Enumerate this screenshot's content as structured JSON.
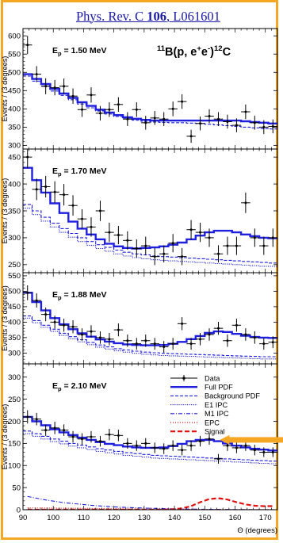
{
  "reference": {
    "journal": "Phys. Rev. C ",
    "volume": "106",
    "sep": ", ",
    "article": "L061601"
  },
  "reaction": {
    "pre": "11",
    "a": "B(p, e",
    "sup_plus": "+",
    "b": "e",
    "sup_minus": "-",
    "c": ")",
    "post": "12",
    "d": "C"
  },
  "colors": {
    "frame": "#f5a623",
    "pdf": "#1f1fe0",
    "signal": "#e01010",
    "data": "#000000",
    "link": "#1a1aa6"
  },
  "chart_data": [
    {
      "type": "line",
      "energy_label": {
        "pre": "E",
        "sub": "p",
        "post": " = 1.50 MeV"
      },
      "ylabel": "Events / (3 degrees)",
      "ylim": [
        290,
        620
      ],
      "yticks": [
        300,
        350,
        400,
        450,
        500,
        550,
        600
      ],
      "x": [
        91.5,
        94.5,
        97.5,
        100.5,
        103.5,
        106.5,
        109.5,
        112.5,
        115.5,
        118.5,
        121.5,
        124.5,
        127.5,
        130.5,
        133.5,
        136.5,
        139.5,
        142.5,
        145.5,
        148.5,
        151.5,
        154.5,
        157.5,
        160.5,
        163.5,
        166.5,
        169.5,
        172.5
      ],
      "data": [
        575,
        495,
        462,
        458,
        462,
        435,
        398,
        438,
        388,
        398,
        412,
        372,
        398,
        362,
        375,
        372,
        400,
        420,
        325,
        360,
        380,
        372,
        365,
        355,
        392,
        362,
        350,
        352
      ],
      "errors": [
        25,
        22,
        22,
        21,
        21,
        21,
        20,
        21,
        20,
        20,
        20,
        19,
        20,
        19,
        19,
        19,
        20,
        20,
        18,
        19,
        19,
        19,
        19,
        19,
        20,
        19,
        19,
        19
      ],
      "full_pdf": [
        495,
        482,
        468,
        455,
        442,
        430,
        418,
        408,
        398,
        390,
        383,
        377,
        373,
        370,
        368,
        368,
        368,
        368,
        368,
        368,
        368,
        368,
        368,
        368,
        366,
        364,
        362,
        360
      ],
      "background_pdf": [
        490,
        476,
        462,
        449,
        437,
        425,
        413,
        403,
        394,
        386,
        379,
        373,
        369,
        366,
        364,
        363,
        362,
        362,
        361,
        360,
        358,
        356,
        354,
        352,
        350,
        348,
        346,
        345
      ]
    },
    {
      "type": "line",
      "energy_label": {
        "pre": "E",
        "sub": "p",
        "post": " = 1.70 MeV"
      },
      "ylabel": "Events / (3 degrees)",
      "ylim": [
        235,
        465
      ],
      "yticks": [
        250,
        300,
        350,
        400,
        450
      ],
      "x": [
        91.5,
        94.5,
        97.5,
        100.5,
        103.5,
        106.5,
        109.5,
        112.5,
        115.5,
        118.5,
        121.5,
        124.5,
        127.5,
        130.5,
        133.5,
        136.5,
        139.5,
        142.5,
        145.5,
        148.5,
        151.5,
        154.5,
        157.5,
        160.5,
        163.5,
        166.5,
        169.5,
        172.5
      ],
      "data": [
        450,
        390,
        395,
        385,
        380,
        360,
        335,
        320,
        350,
        310,
        305,
        295,
        280,
        285,
        265,
        270,
        290,
        265,
        315,
        310,
        300,
        270,
        285,
        285,
        365,
        300,
        285,
        300
      ],
      "errors": [
        21,
        20,
        20,
        20,
        20,
        19,
        18,
        18,
        19,
        18,
        17,
        17,
        17,
        17,
        16,
        16,
        17,
        16,
        18,
        18,
        17,
        16,
        17,
        17,
        19,
        17,
        17,
        17
      ],
      "full_pdf": [
        430,
        407,
        384,
        364,
        346,
        330,
        317,
        306,
        297,
        289,
        284,
        281,
        280,
        281,
        282,
        284,
        287,
        291,
        297,
        304,
        310,
        313,
        313,
        310,
        306,
        303,
        300,
        299
      ],
      "background_pdf": [
        362,
        350,
        338,
        327,
        317,
        308,
        300,
        293,
        287,
        282,
        277,
        273,
        270,
        268,
        266,
        265,
        264,
        263,
        262,
        261,
        260,
        259,
        258,
        257,
        256,
        255,
        254,
        253
      ],
      "e1_ipc": [
        355,
        343,
        331,
        320,
        310,
        301,
        293,
        286,
        280,
        275,
        270,
        266,
        263,
        261,
        259,
        258,
        257,
        256,
        255,
        254,
        253,
        252,
        251,
        250,
        249,
        248,
        247,
        247
      ]
    },
    {
      "type": "line",
      "energy_label": {
        "pre": "E",
        "sub": "p",
        "post": " = 1.88 MeV"
      },
      "ylabel": "Events / (3 degrees)",
      "ylim": [
        265,
        560
      ],
      "yticks": [
        300,
        350,
        400,
        450,
        500,
        550
      ],
      "x": [
        91.5,
        94.5,
        97.5,
        100.5,
        103.5,
        106.5,
        109.5,
        112.5,
        115.5,
        118.5,
        121.5,
        124.5,
        127.5,
        130.5,
        133.5,
        136.5,
        139.5,
        142.5,
        145.5,
        148.5,
        151.5,
        154.5,
        157.5,
        160.5,
        163.5,
        166.5,
        169.5,
        172.5
      ],
      "data": [
        495,
        470,
        425,
        400,
        390,
        385,
        360,
        370,
        350,
        345,
        375,
        340,
        330,
        340,
        330,
        320,
        330,
        395,
        330,
        345,
        360,
        380,
        340,
        390,
        360,
        350,
        330,
        335
      ],
      "errors": [
        24,
        23,
        22,
        21,
        21,
        21,
        20,
        20,
        20,
        20,
        21,
        20,
        19,
        20,
        19,
        19,
        19,
        21,
        19,
        20,
        20,
        21,
        20,
        21,
        20,
        20,
        19,
        19
      ],
      "full_pdf": [
        495,
        465,
        438,
        413,
        393,
        377,
        364,
        353,
        344,
        337,
        332,
        328,
        326,
        325,
        325,
        326,
        330,
        336,
        345,
        355,
        365,
        370,
        368,
        362,
        356,
        352,
        350,
        349
      ],
      "background_pdf": [
        420,
        405,
        390,
        377,
        364,
        353,
        343,
        334,
        326,
        320,
        314,
        310,
        306,
        303,
        301,
        299,
        298,
        297,
        296,
        295,
        294,
        293,
        292,
        291,
        290,
        289,
        288,
        288
      ],
      "e1_ipc": [
        413,
        398,
        383,
        370,
        357,
        346,
        336,
        327,
        319,
        313,
        307,
        303,
        299,
        296,
        294,
        292,
        291,
        290,
        289,
        288,
        287,
        286,
        285,
        284,
        283,
        282,
        281,
        281
      ]
    },
    {
      "type": "line",
      "energy_label": {
        "pre": "E",
        "sub": "p",
        "post": " = 2.10 MeV"
      },
      "ylabel": "Events / (3 degrees)",
      "xlabel": "Θ (degrees)",
      "ylim": [
        0,
        330
      ],
      "yticks": [
        0,
        50,
        100,
        150,
        200,
        250,
        300
      ],
      "xlim": [
        90,
        174
      ],
      "xticks": [
        90,
        100,
        110,
        120,
        130,
        140,
        150,
        160,
        170
      ],
      "x": [
        91.5,
        94.5,
        97.5,
        100.5,
        103.5,
        106.5,
        109.5,
        112.5,
        115.5,
        118.5,
        121.5,
        124.5,
        127.5,
        130.5,
        133.5,
        136.5,
        139.5,
        142.5,
        145.5,
        148.5,
        151.5,
        154.5,
        157.5,
        160.5,
        163.5,
        166.5,
        169.5,
        172.5
      ],
      "data": [
        210,
        205,
        180,
        185,
        180,
        165,
        160,
        165,
        155,
        170,
        168,
        150,
        145,
        150,
        140,
        138,
        145,
        135,
        145,
        155,
        160,
        115,
        145,
        140,
        145,
        135,
        130,
        130
      ],
      "errors": [
        15,
        14,
        13,
        14,
        13,
        13,
        13,
        13,
        12,
        13,
        13,
        12,
        12,
        12,
        12,
        12,
        12,
        12,
        12,
        12,
        13,
        11,
        12,
        12,
        12,
        12,
        11,
        11
      ],
      "full_pdf": [
        210,
        200,
        191,
        182,
        175,
        169,
        163,
        158,
        153,
        149,
        146,
        143,
        141,
        140,
        140,
        141,
        144,
        149,
        155,
        158,
        158,
        155,
        150,
        145,
        141,
        138,
        136,
        134
      ],
      "background_pdf": [
        178,
        172,
        166,
        160,
        155,
        150,
        146,
        142,
        138,
        135,
        132,
        129,
        127,
        125,
        123,
        122,
        121,
        120,
        119,
        118,
        117,
        116,
        115,
        114,
        113,
        112,
        111,
        110
      ],
      "e1_ipc": [
        172,
        166,
        160,
        154,
        149,
        144,
        140,
        136,
        132,
        129,
        126,
        123,
        121,
        119,
        117,
        116,
        115,
        114,
        113,
        112,
        111,
        110,
        109,
        108,
        107,
        106,
        105,
        104
      ],
      "m1_ipc": [
        30,
        26,
        22,
        19,
        16,
        14,
        12,
        10,
        8.5,
        7,
        6,
        5,
        4.3,
        3.6,
        3,
        2.5,
        2,
        1.7,
        1.4,
        1.1,
        0.9,
        0.7,
        0.5,
        0.4,
        0.3,
        0.2,
        0.15,
        0.1
      ],
      "epc": [
        4,
        4,
        3.8,
        3.6,
        3.4,
        3.2,
        3,
        2.8,
        2.6,
        2.4,
        2.2,
        2,
        1.8,
        1.6,
        1.4,
        1.2,
        1,
        0.9,
        0.8,
        0.7,
        0.6,
        0.5,
        0.4,
        0.3,
        0.2,
        0.15,
        0.1,
        0.1
      ],
      "signal": [
        0,
        0,
        0,
        0,
        0,
        0,
        0,
        0,
        0,
        0,
        0,
        0,
        0,
        0,
        0,
        0,
        1,
        3,
        8,
        17,
        24,
        26,
        23,
        17,
        12,
        9,
        8,
        8
      ],
      "legend": {
        "position": "top-right",
        "items": [
          {
            "key": "data",
            "label": "Data"
          },
          {
            "key": "full",
            "label": "Full PDF"
          },
          {
            "key": "bkg",
            "label": "Background PDF"
          },
          {
            "key": "e1",
            "label": "E1 IPC"
          },
          {
            "key": "m1",
            "label": "M1 IPC"
          },
          {
            "key": "epc",
            "label": "EPC"
          },
          {
            "key": "sig",
            "label": "Signal"
          }
        ]
      },
      "annotation": {
        "type": "arrow",
        "color": "#f5a623",
        "target_x": 155,
        "target_y": 158
      }
    }
  ]
}
